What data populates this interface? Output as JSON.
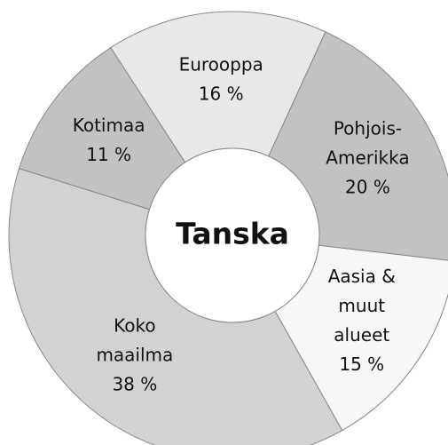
{
  "chart_data": {
    "type": "donut",
    "title": "Tanska",
    "categories": [
      [
        "Eurooppa"
      ],
      [
        "Pohjois-",
        "Amerikka"
      ],
      [
        "Aasia &",
        "muut",
        "alueet"
      ],
      [
        "Koko",
        "maailma"
      ],
      [
        "Kotimaa"
      ]
    ],
    "values": [
      16,
      20,
      15,
      38,
      11
    ],
    "value_labels": [
      "16 %",
      "20 %",
      "15 %",
      "38 %",
      "11 %"
    ],
    "colors": [
      "#e8e8e8",
      "#c2c2c2",
      "#f7f7f7",
      "#d2d2d2",
      "#c2c2c2"
    ]
  }
}
